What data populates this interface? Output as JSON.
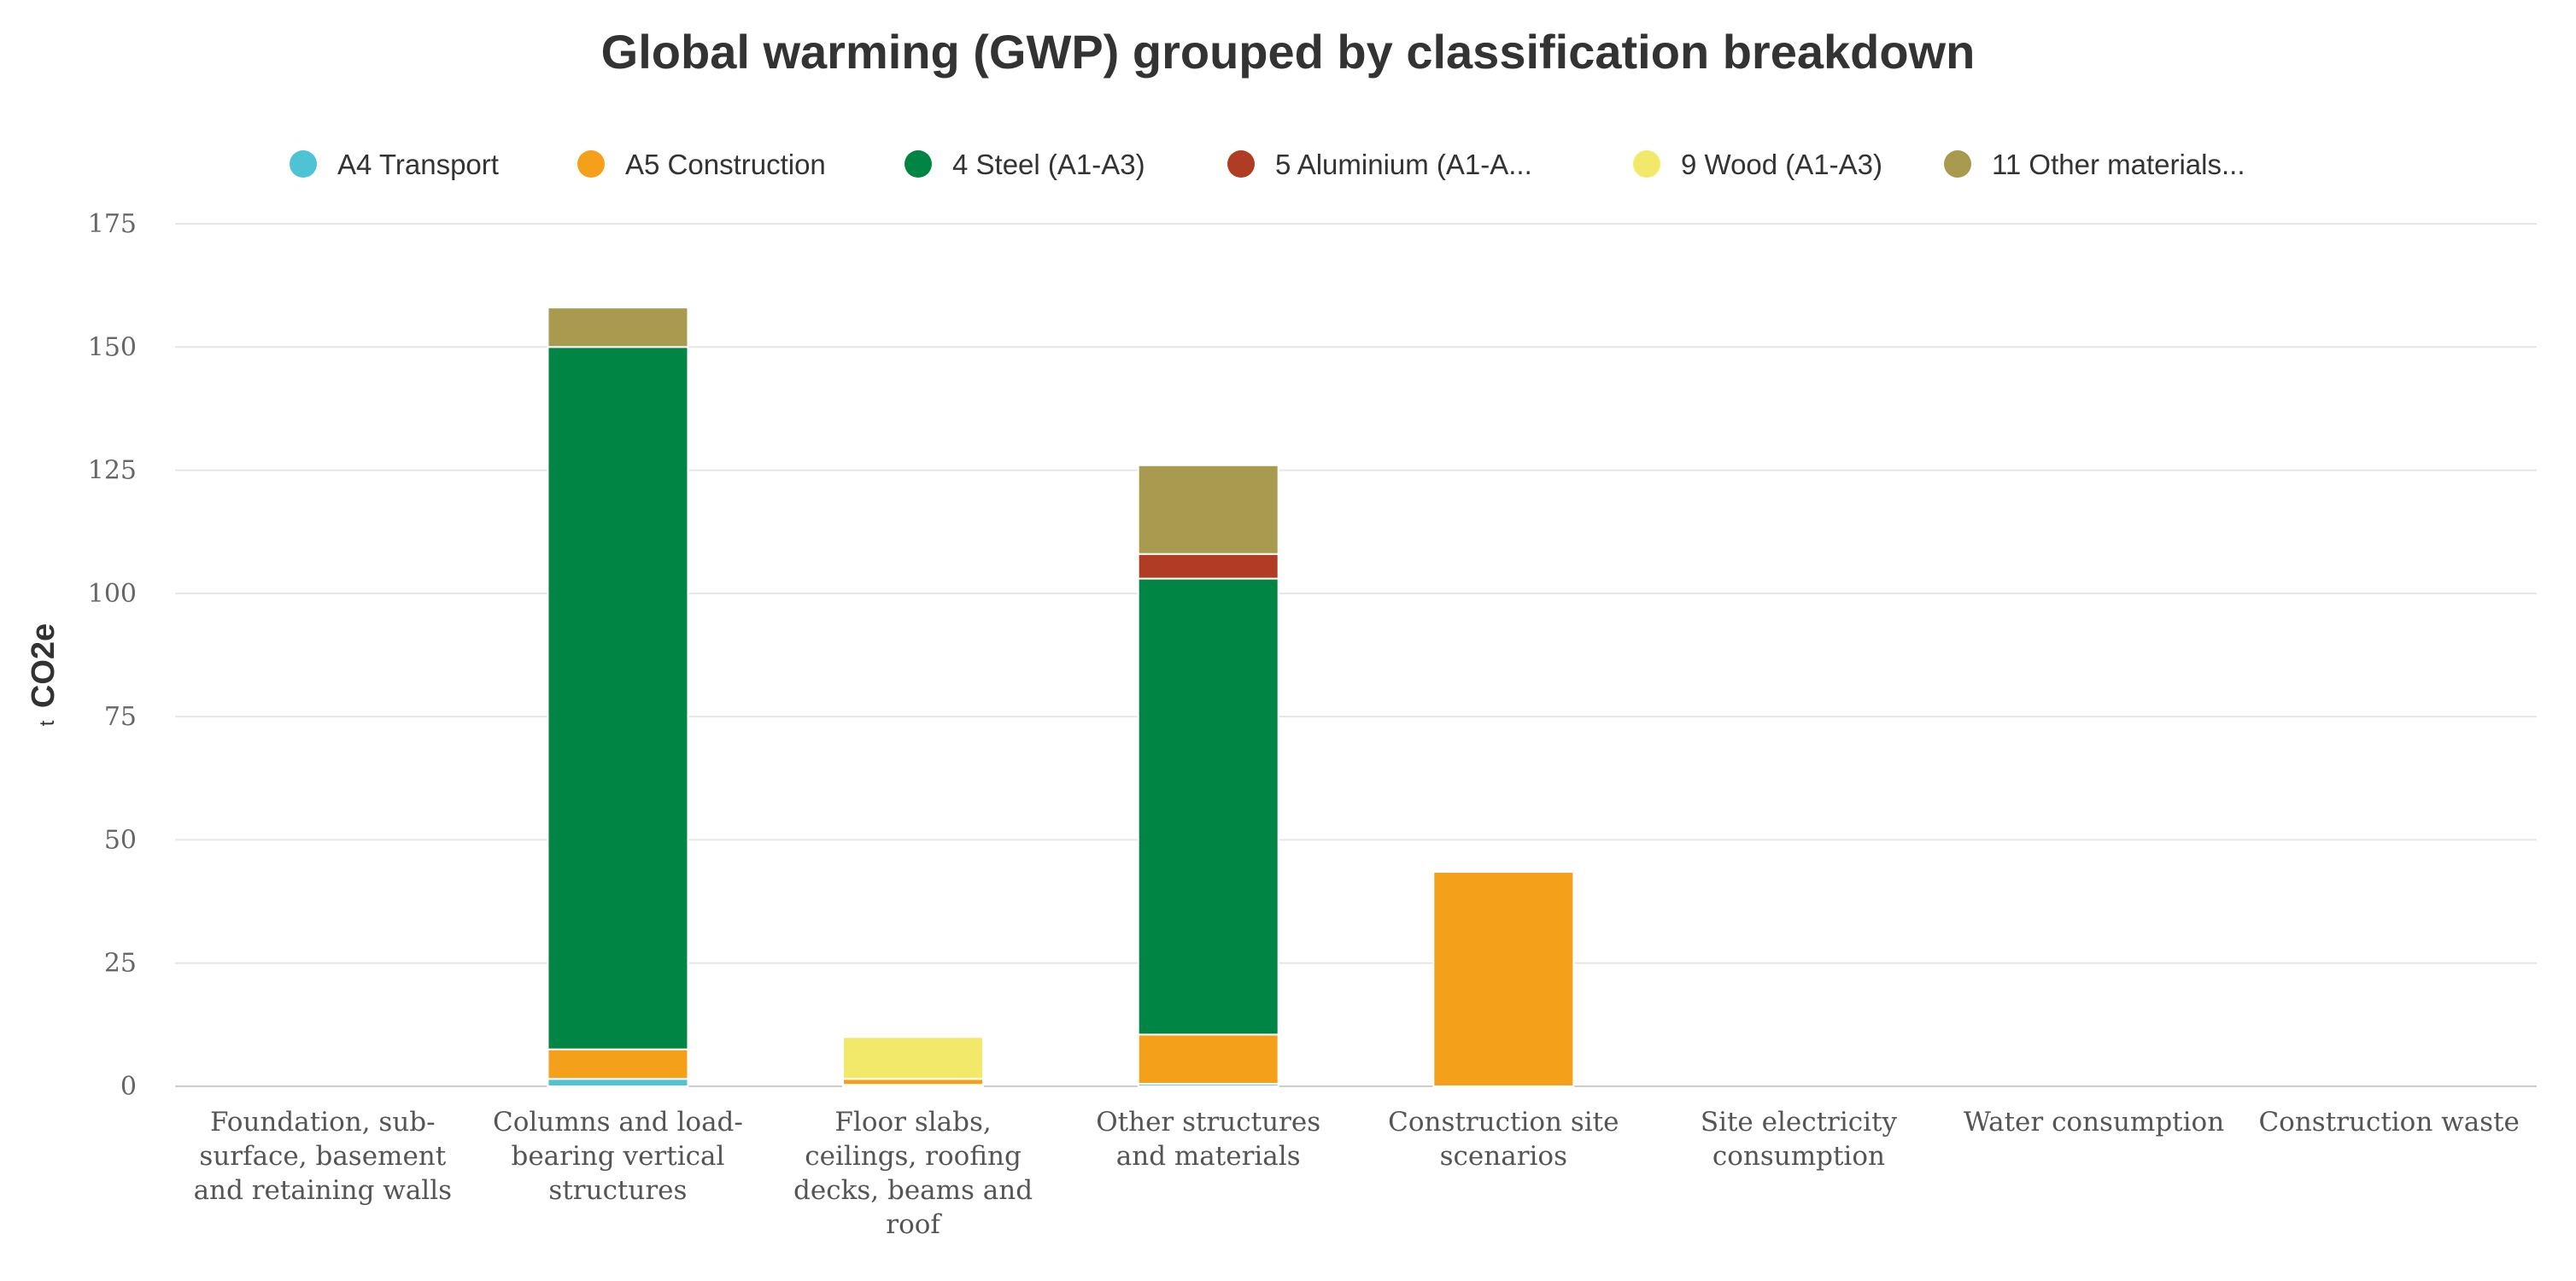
{
  "chart_data": {
    "type": "bar",
    "stacked": true,
    "title": "Global warming (GWP) grouped by classification breakdown",
    "ylabel": "CO2e",
    "ylabel_prefix": "t",
    "xlabel": "",
    "ylim": [
      0,
      175
    ],
    "yticks": [
      0,
      25,
      50,
      75,
      100,
      125,
      150,
      175
    ],
    "grid": true,
    "legend_position": "top",
    "categories": [
      [
        "Foundation, sub-",
        "surface, basement",
        "and retaining walls"
      ],
      [
        "Columns and load-",
        "bearing vertical",
        "structures"
      ],
      [
        "Floor slabs,",
        "ceilings, roofing",
        "decks, beams and",
        "roof"
      ],
      [
        "Other structures",
        "and materials"
      ],
      [
        "Construction site",
        "scenarios"
      ],
      [
        "Site electricity",
        "consumption"
      ],
      [
        "Water consumption"
      ],
      [
        "Construction waste"
      ]
    ],
    "series": [
      {
        "name": "A4 Transport",
        "color": "#4dc3d4",
        "values": [
          0,
          1.5,
          0.3,
          0.5,
          0,
          0,
          0,
          0
        ]
      },
      {
        "name": "A5 Construction",
        "color": "#f5a01a",
        "values": [
          0,
          6,
          1.2,
          10,
          43.5,
          0,
          0,
          0
        ]
      },
      {
        "name": "4 Steel (A1-A3)",
        "color": "#008545",
        "values": [
          0,
          142.5,
          0,
          92.5,
          0,
          0,
          0,
          0
        ]
      },
      {
        "name": "5 Aluminium (A1-A...",
        "color": "#b03c23",
        "values": [
          0,
          0,
          0,
          5,
          0,
          0,
          0,
          0
        ]
      },
      {
        "name": "9 Wood (A1-A3)",
        "color": "#f2e96a",
        "values": [
          0,
          0,
          8.5,
          0,
          0,
          0,
          0,
          0
        ]
      },
      {
        "name": "11 Other materials...",
        "color": "#a89a4e",
        "values": [
          0,
          8,
          0,
          18,
          0,
          0,
          0,
          0
        ]
      }
    ]
  }
}
